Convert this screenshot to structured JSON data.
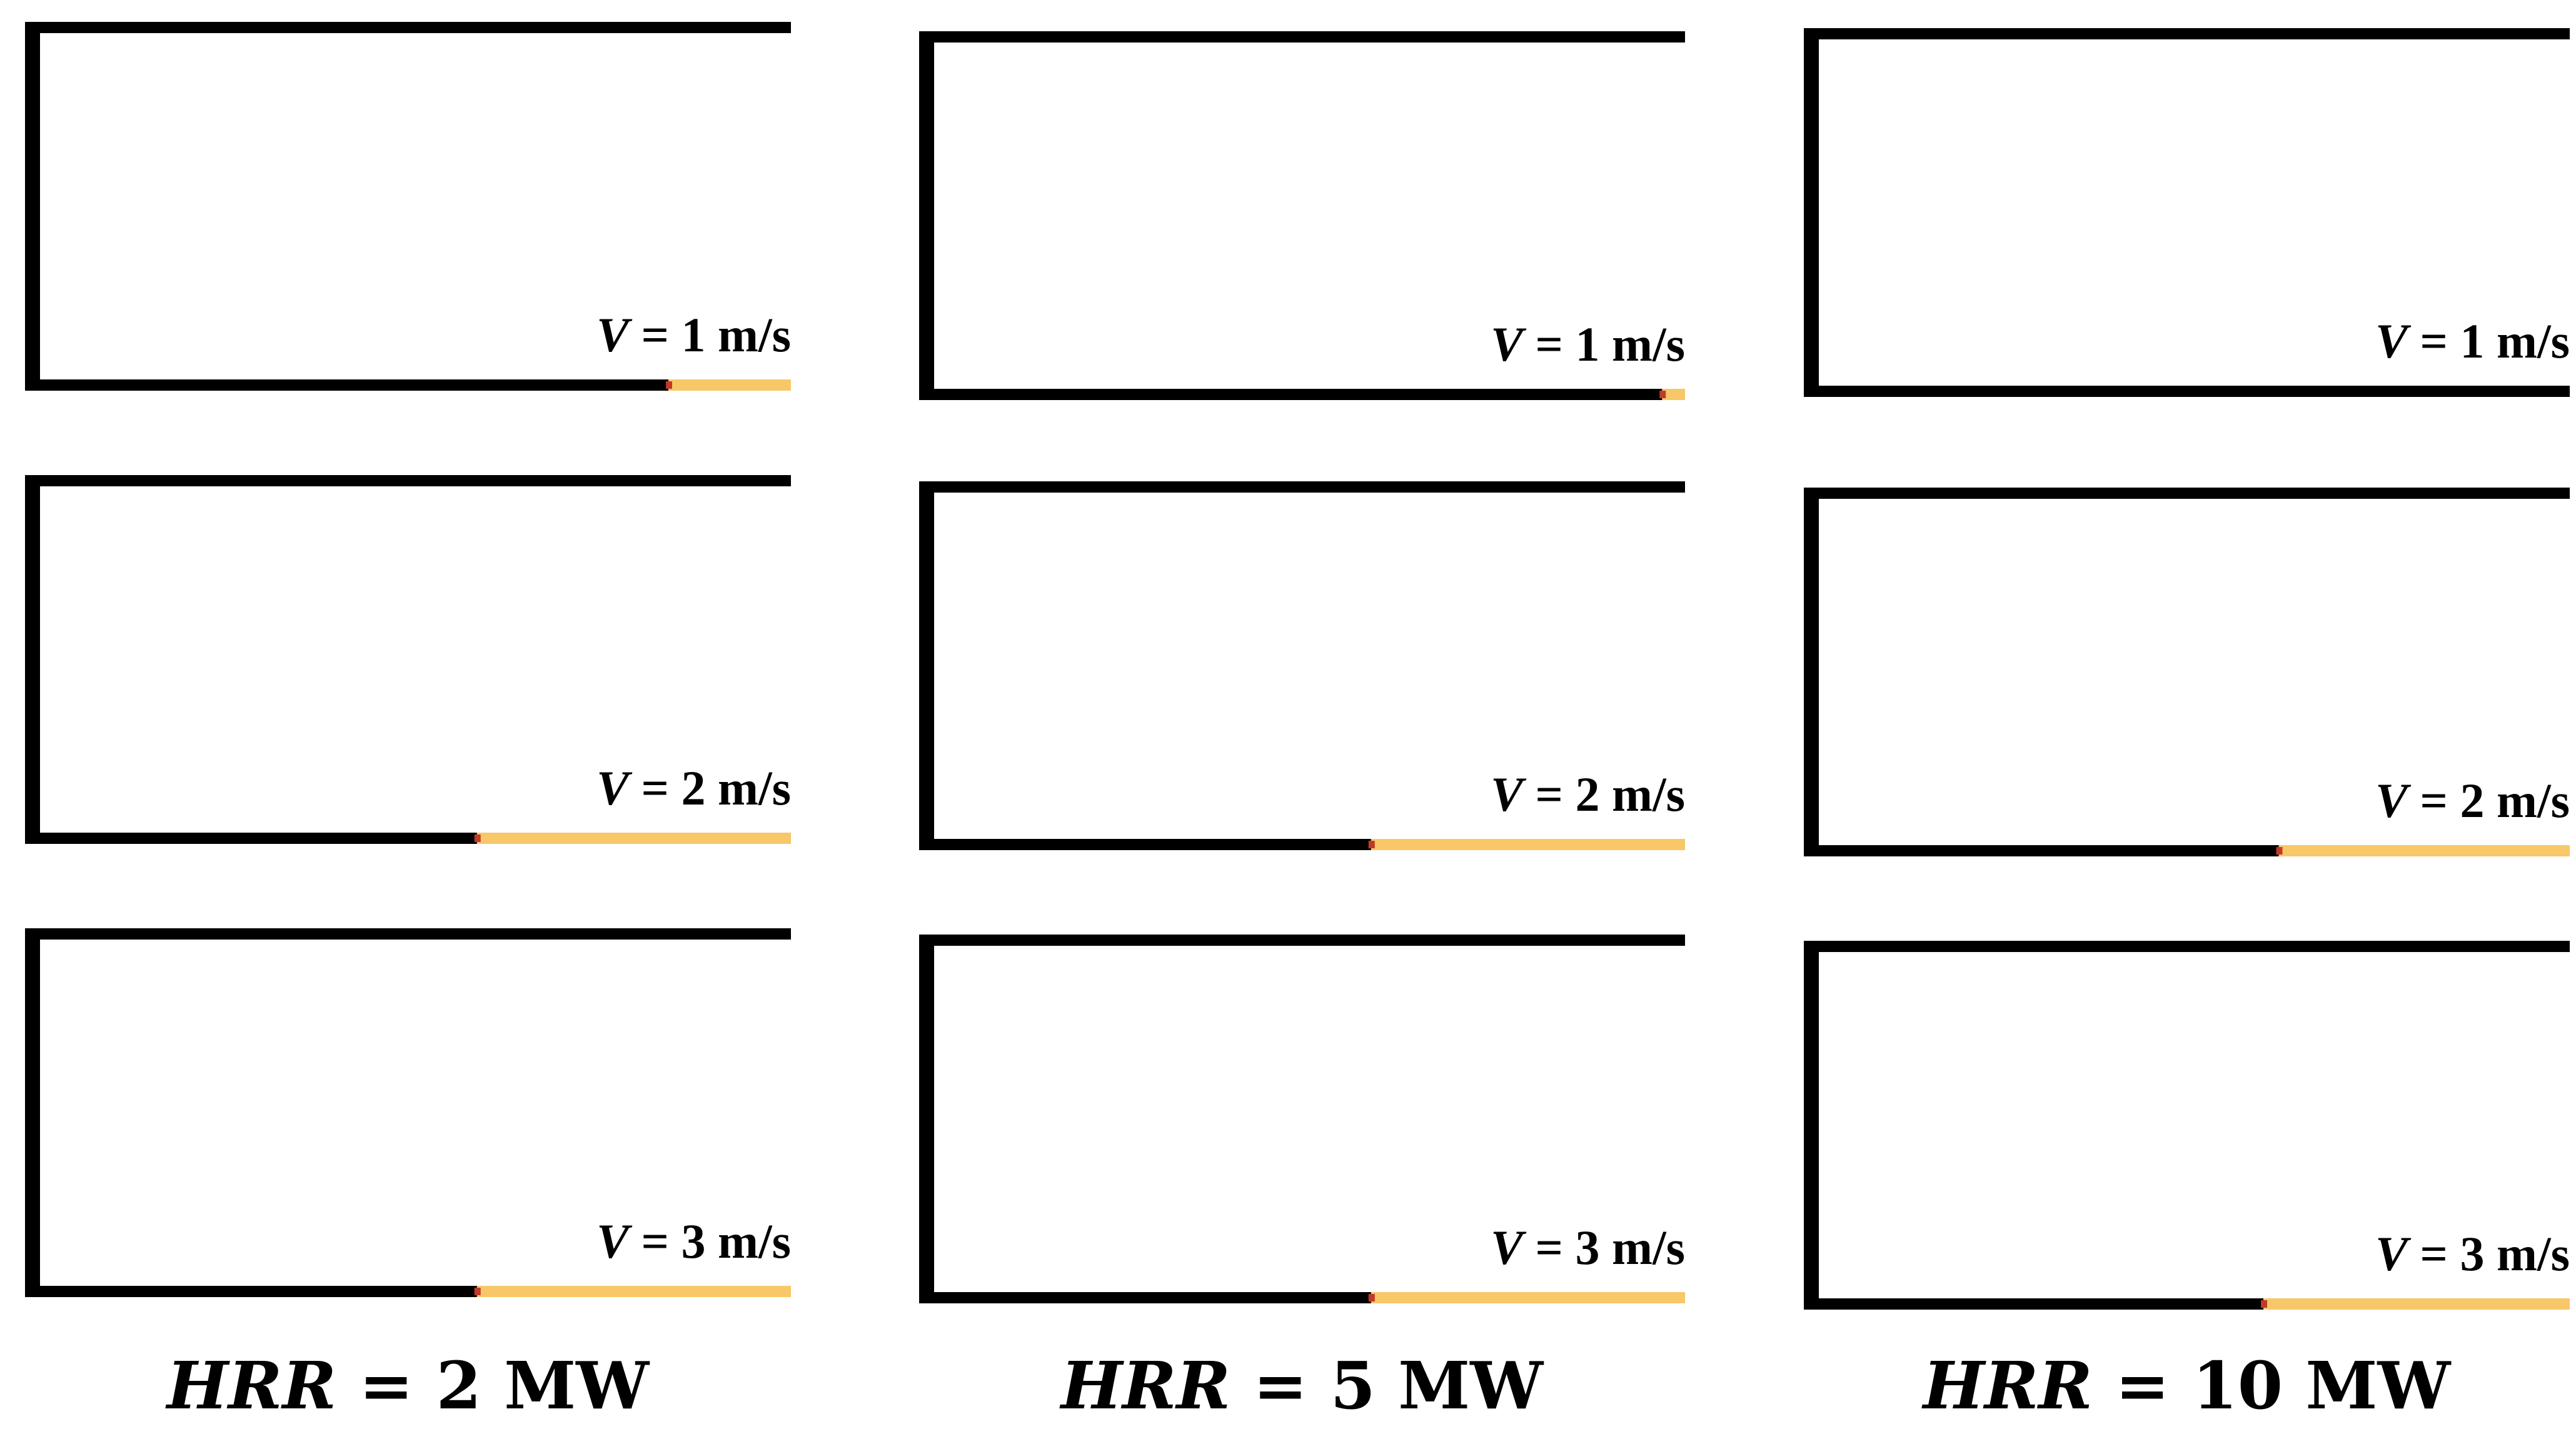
{
  "columns": [
    {
      "hrr_var": "HRR",
      "hrr_eq": " = ",
      "hrr_value": "2 MW",
      "rows": [
        {
          "label_var": "V",
          "label_text": " = 1 m/s",
          "yellow_fraction": 0.16
        },
        {
          "label_var": "V",
          "label_text": " = 2 m/s",
          "yellow_fraction": 0.41
        },
        {
          "label_var": "V",
          "label_text": " = 3 m/s",
          "yellow_fraction": 0.41
        }
      ]
    },
    {
      "hrr_var": "HRR",
      "hrr_eq": " = ",
      "hrr_value": "5 MW",
      "rows": [
        {
          "label_var": "V",
          "label_text": " = 1 m/s",
          "yellow_fraction": 0.03
        },
        {
          "label_var": "V",
          "label_text": " = 2 m/s",
          "yellow_fraction": 0.41
        },
        {
          "label_var": "V",
          "label_text": " = 3 m/s",
          "yellow_fraction": 0.41
        }
      ]
    },
    {
      "hrr_var": "HRR",
      "hrr_eq": " = ",
      "hrr_value": "10 MW",
      "rows": [
        {
          "label_var": "V",
          "label_text": " = 1 m/s",
          "yellow_fraction": 0.0
        },
        {
          "label_var": "V",
          "label_text": " = 2 m/s",
          "yellow_fraction": 0.38
        },
        {
          "label_var": "V",
          "label_text": " = 3 m/s",
          "yellow_fraction": 0.4
        }
      ]
    }
  ],
  "colors": {
    "wall": "#000000",
    "flame": "#f7c768",
    "ember": "#c0392b",
    "background": "#ffffff"
  }
}
